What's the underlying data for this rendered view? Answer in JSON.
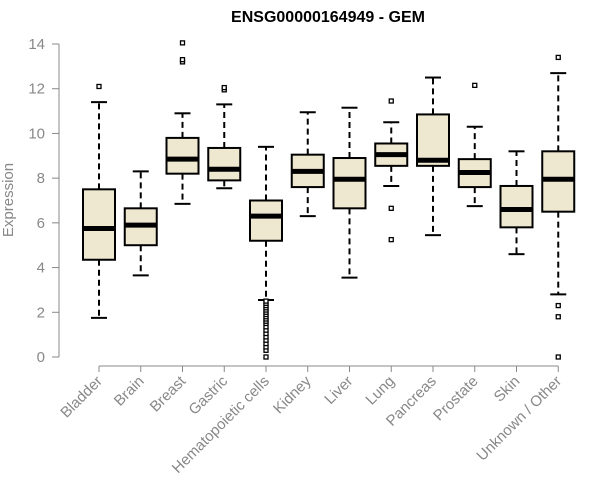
{
  "chart_data": {
    "type": "boxplot",
    "title": "ENSG00000164949 - GEM",
    "xlabel": "",
    "ylabel": "Expression",
    "ylim": [
      0,
      14
    ],
    "yticks": [
      0,
      2,
      4,
      6,
      8,
      10,
      12,
      14
    ],
    "box_fill": "#efe8d0",
    "stroke_color": "#000000",
    "axis_color": "#888888",
    "categories": [
      "Bladder",
      "Brain",
      "Breast",
      "Gastric",
      "Hematopoietic cells",
      "Kidney",
      "Liver",
      "Lung",
      "Pancreas",
      "Prostate",
      "Skin",
      "Unknown / Other"
    ],
    "boxes": [
      {
        "whisker_low": 1.75,
        "q1": 4.35,
        "median": 5.75,
        "q3": 7.5,
        "whisker_high": 11.4,
        "outliers": [
          12.1
        ]
      },
      {
        "whisker_low": 3.65,
        "q1": 5.0,
        "median": 5.9,
        "q3": 6.65,
        "whisker_high": 8.3,
        "outliers": []
      },
      {
        "whisker_low": 6.85,
        "q1": 8.2,
        "median": 8.85,
        "q3": 9.8,
        "whisker_high": 10.9,
        "outliers": [
          13.2,
          13.3,
          14.05
        ]
      },
      {
        "whisker_low": 7.55,
        "q1": 7.9,
        "median": 8.4,
        "q3": 9.35,
        "whisker_high": 11.3,
        "outliers": [
          11.95,
          12.05
        ]
      },
      {
        "whisker_low": 2.55,
        "q1": 5.2,
        "median": 6.3,
        "q3": 7.0,
        "whisker_high": 9.4,
        "outliers": [
          0.0,
          0.3,
          0.45,
          0.6,
          0.75,
          0.9,
          1.05,
          1.2,
          1.35,
          1.5,
          1.6,
          1.7,
          1.8,
          1.9,
          2.0,
          2.1,
          2.2,
          2.3,
          2.4,
          2.5
        ]
      },
      {
        "whisker_low": 6.3,
        "q1": 7.6,
        "median": 8.3,
        "q3": 9.05,
        "whisker_high": 10.95,
        "outliers": []
      },
      {
        "whisker_low": 3.55,
        "q1": 6.65,
        "median": 7.95,
        "q3": 8.9,
        "whisker_high": 11.15,
        "outliers": []
      },
      {
        "whisker_low": 7.65,
        "q1": 8.55,
        "median": 9.05,
        "q3": 9.55,
        "whisker_high": 10.5,
        "outliers": [
          5.25,
          6.65,
          11.45
        ]
      },
      {
        "whisker_low": 5.45,
        "q1": 8.55,
        "median": 8.8,
        "q3": 10.85,
        "whisker_high": 12.5,
        "outliers": []
      },
      {
        "whisker_low": 6.75,
        "q1": 7.6,
        "median": 8.25,
        "q3": 8.85,
        "whisker_high": 10.3,
        "outliers": [
          12.15
        ]
      },
      {
        "whisker_low": 4.6,
        "q1": 5.8,
        "median": 6.6,
        "q3": 7.65,
        "whisker_high": 9.2,
        "outliers": []
      },
      {
        "whisker_low": 2.8,
        "q1": 6.5,
        "median": 7.95,
        "q3": 9.2,
        "whisker_high": 12.7,
        "outliers": [
          0.0,
          1.8,
          2.3,
          13.4
        ]
      }
    ]
  }
}
